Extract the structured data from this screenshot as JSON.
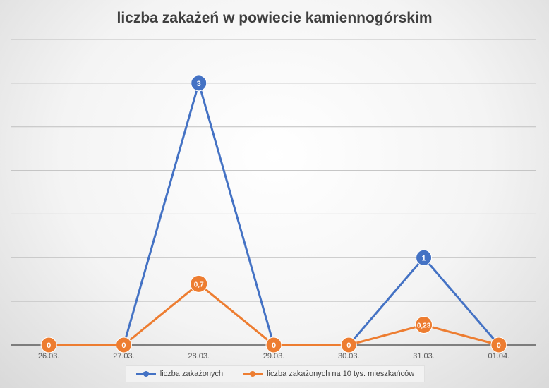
{
  "chart_data": {
    "type": "line",
    "title": "liczba zakażeń w powiecie kamiennogórskim",
    "categories": [
      "26.03.",
      "27.03.",
      "28.03.",
      "29.03.",
      "30.03.",
      "31.03.",
      "01.04."
    ],
    "ylim": [
      0,
      3.5
    ],
    "grid": true,
    "legend_position": "bottom",
    "series": [
      {
        "name": "liczba zakażonych",
        "color": "#4472c4",
        "values": [
          null,
          0,
          3,
          0,
          0,
          1,
          0
        ],
        "labels": [
          "",
          "",
          "3",
          "",
          "",
          "1",
          ""
        ]
      },
      {
        "name": "liczba zakażonych na 10 tys. mieszkańców",
        "color": "#ed7d31",
        "values": [
          0,
          0,
          0.7,
          0,
          0,
          0.23,
          0
        ],
        "labels": [
          "0",
          "0",
          "0,7",
          "0",
          "0",
          "0,23",
          "0"
        ]
      }
    ]
  }
}
